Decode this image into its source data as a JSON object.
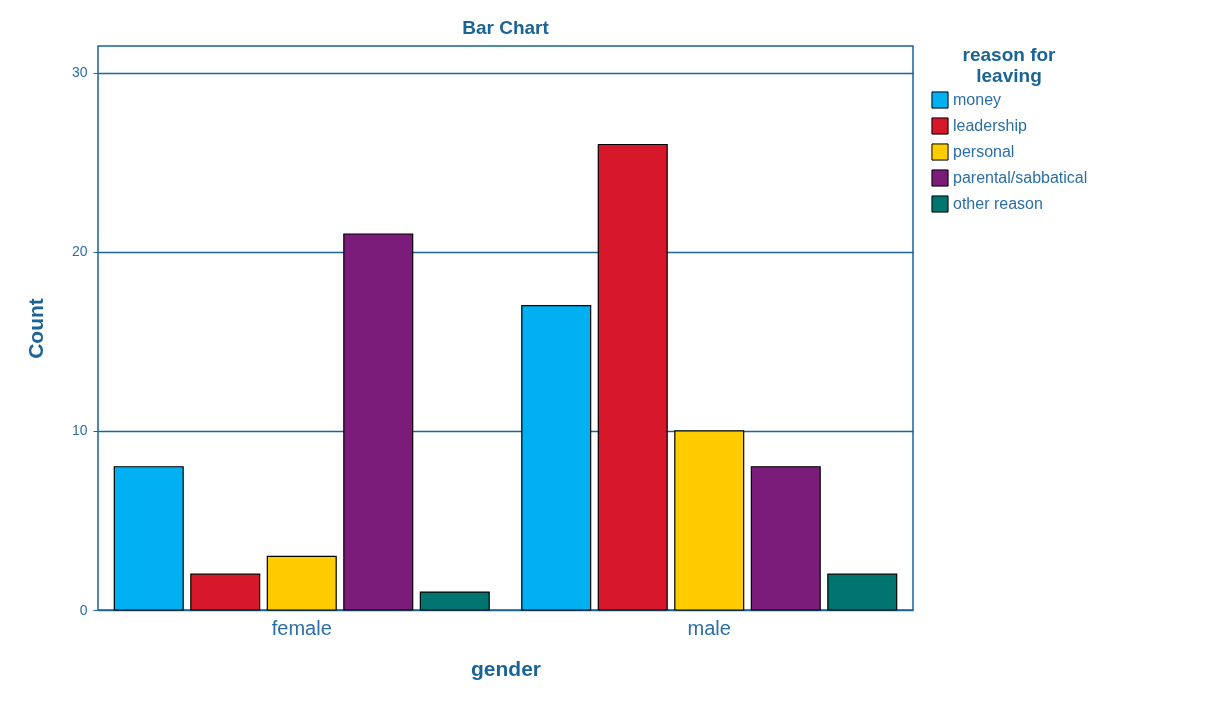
{
  "chart_data": {
    "type": "bar",
    "title": "Bar Chart",
    "xlabel": "gender",
    "ylabel": "Count",
    "legend_title": "reason for leaving",
    "categories": [
      "female",
      "male"
    ],
    "series": [
      {
        "name": "money",
        "color": "#00b0f0",
        "values": [
          8,
          17
        ]
      },
      {
        "name": "leadership",
        "color": "#d7182a",
        "values": [
          2,
          26
        ]
      },
      {
        "name": "personal",
        "color": "#ffcc00",
        "values": [
          3,
          10
        ]
      },
      {
        "name": "parental/sabbatical",
        "color": "#7b1c7a",
        "values": [
          21,
          8
        ]
      },
      {
        "name": "other reason",
        "color": "#00756f",
        "values": [
          1,
          2
        ]
      }
    ],
    "ylim": [
      0,
      31.5
    ],
    "yticks": [
      0,
      10,
      20,
      30
    ],
    "grid": "y",
    "legend": "top right"
  }
}
